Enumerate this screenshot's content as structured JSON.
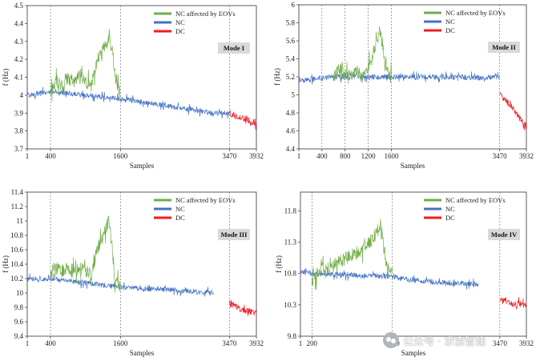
{
  "colors": {
    "nc_eov": "#70ad47",
    "nc": "#4472c4",
    "dc": "#ee1c25"
  },
  "watermark": {
    "icon": "wechat-icon",
    "text": "公众号 · 求索智建"
  },
  "chart_data": [
    {
      "type": "line",
      "mode_label": "Mode I",
      "xlabel": "Samples",
      "ylabel": "f (Hz)",
      "ylim": [
        3.7,
        4.5
      ],
      "xlim": [
        1,
        3932
      ],
      "yticks": [
        "3.7",
        "3.8",
        "3.9",
        "4",
        "4.1",
        "4.2",
        "4.3",
        "4.4",
        "4.5"
      ],
      "xticks": [
        1,
        400,
        1600,
        3470,
        3932
      ],
      "vlines": [
        400,
        1600,
        3470
      ],
      "legend_position": "top-right",
      "series": [
        {
          "name": "NC affected by EOVs",
          "color_key": "nc_eov",
          "x": [
            400,
            500,
            600,
            700,
            800,
            900,
            1000,
            1100,
            1200,
            1300,
            1400,
            1460,
            1520,
            1600
          ],
          "y": [
            4.02,
            4.08,
            4.05,
            4.1,
            4.07,
            4.12,
            4.08,
            4.05,
            4.2,
            4.25,
            4.32,
            4.25,
            4.08,
            4.0
          ]
        },
        {
          "name": "NC",
          "color_key": "nc",
          "x": [
            1,
            200,
            400,
            1600,
            2000,
            2400,
            2800,
            3200,
            3470
          ],
          "y": [
            4.0,
            4.01,
            4.02,
            3.98,
            3.96,
            3.94,
            3.92,
            3.9,
            3.9
          ]
        },
        {
          "name": "DC",
          "color_key": "dc",
          "x": [
            3470,
            3600,
            3700,
            3800,
            3932
          ],
          "y": [
            3.9,
            3.88,
            3.87,
            3.86,
            3.84
          ]
        }
      ]
    },
    {
      "type": "line",
      "mode_label": "Mode II",
      "xlabel": "Samples",
      "ylabel": "f (Hz)",
      "ylim": [
        4.4,
        6
      ],
      "xlim": [
        1,
        3932
      ],
      "yticks": [
        "4.4",
        "4.6",
        "4.8",
        "5",
        "5.2",
        "5.4",
        "5.6",
        "5.8",
        "6"
      ],
      "xticks": [
        1,
        400,
        800,
        1200,
        1600,
        3470,
        3932
      ],
      "vlines": [
        400,
        800,
        1200,
        1600,
        3470
      ],
      "legend_position": "top-right",
      "series": [
        {
          "name": "NC affected by EOVs",
          "color_key": "nc_eov",
          "x": [
            600,
            700,
            800,
            900,
            1000,
            1100,
            1200,
            1300,
            1400,
            1450,
            1500,
            1600
          ],
          "y": [
            5.2,
            5.3,
            5.22,
            5.2,
            5.25,
            5.2,
            5.3,
            5.45,
            5.7,
            5.55,
            5.3,
            5.2
          ]
        },
        {
          "name": "NC",
          "color_key": "nc",
          "x": [
            1,
            300,
            600,
            1600,
            2000,
            2600,
            3200,
            3470
          ],
          "y": [
            5.15,
            5.18,
            5.2,
            5.2,
            5.2,
            5.2,
            5.19,
            5.2
          ]
        },
        {
          "name": "DC",
          "color_key": "dc",
          "x": [
            3470,
            3600,
            3700,
            3800,
            3932
          ],
          "y": [
            5.0,
            4.92,
            4.85,
            4.75,
            4.65
          ]
        }
      ]
    },
    {
      "type": "line",
      "mode_label": "Mode III",
      "xlabel": "Samples",
      "ylabel": "f (Hz)",
      "ylim": [
        9.4,
        11.4
      ],
      "xlim": [
        1,
        3932
      ],
      "yticks": [
        "9.4",
        "9.6",
        "9.8",
        "10",
        "10.2",
        "10.4",
        "10.6",
        "10.8",
        "11",
        "11.2",
        "11.4"
      ],
      "xticks": [
        1,
        400,
        1600,
        3470,
        3932
      ],
      "vlines": [
        400,
        1600,
        3470
      ],
      "legend_position": "top-right",
      "series": [
        {
          "name": "NC affected by EOVs",
          "color_key": "nc_eov",
          "x": [
            400,
            500,
            600,
            700,
            800,
            900,
            1000,
            1100,
            1200,
            1300,
            1400,
            1450,
            1500,
            1600
          ],
          "y": [
            10.3,
            10.35,
            10.3,
            10.35,
            10.3,
            10.35,
            10.3,
            10.25,
            10.6,
            10.8,
            11.0,
            10.7,
            10.2,
            10.1
          ]
        },
        {
          "name": "NC",
          "color_key": "nc",
          "x": [
            1,
            200,
            400,
            1600,
            2000,
            2400,
            2800,
            3200
          ],
          "y": [
            10.2,
            10.18,
            10.2,
            10.08,
            10.06,
            10.05,
            10.02,
            10.0
          ]
        },
        {
          "name": "DC",
          "color_key": "dc",
          "x": [
            3470,
            3600,
            3700,
            3800,
            3932
          ],
          "y": [
            9.85,
            9.8,
            9.75,
            9.75,
            9.72
          ]
        }
      ]
    },
    {
      "type": "line",
      "mode_label": "Mode IV",
      "xlabel": "Samples",
      "ylabel": "f (Hz)",
      "ylim": [
        9.8,
        12.1
      ],
      "xlim": [
        1,
        3932
      ],
      "yticks": [
        "9.8",
        "10.3",
        "10.8",
        "11.3",
        "11.8"
      ],
      "xticks": [
        1,
        200,
        1600,
        3470,
        3932
      ],
      "vlines": [
        200,
        1600,
        3470
      ],
      "legend_position": "top-right",
      "series": [
        {
          "name": "NC affected by EOVs",
          "color_key": "nc_eov",
          "x": [
            200,
            300,
            400,
            500,
            600,
            700,
            800,
            900,
            1000,
            1100,
            1200,
            1300,
            1400,
            1450,
            1500,
            1600
          ],
          "y": [
            10.7,
            10.8,
            10.9,
            10.85,
            10.95,
            11.0,
            11.05,
            11.1,
            11.15,
            11.2,
            11.3,
            11.4,
            11.6,
            11.2,
            10.9,
            10.8
          ]
        },
        {
          "name": "NC",
          "color_key": "nc",
          "x": [
            1,
            100,
            200,
            1600,
            1900,
            2200,
            2500,
            2800,
            3100
          ],
          "y": [
            10.8,
            10.85,
            10.8,
            10.75,
            10.7,
            10.68,
            10.65,
            10.65,
            10.62
          ]
        },
        {
          "name": "DC",
          "color_key": "dc",
          "x": [
            3470,
            3600,
            3700,
            3800,
            3932
          ],
          "y": [
            10.4,
            10.35,
            10.3,
            10.32,
            10.3
          ]
        }
      ]
    }
  ]
}
